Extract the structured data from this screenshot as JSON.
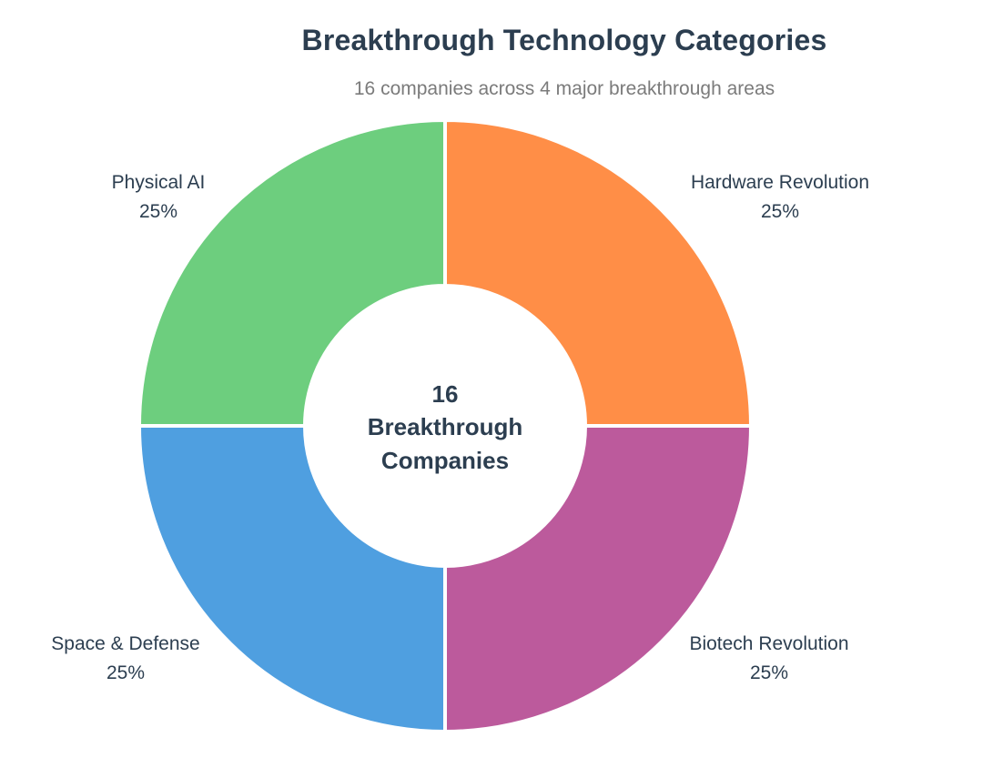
{
  "chart_data": {
    "type": "pie",
    "title": "Breakthrough Technology Categories",
    "subtitle": "16 companies across 4 major breakthrough areas",
    "donut": true,
    "center_text": [
      "16",
      "Breakthrough",
      "Companies"
    ],
    "slices": [
      {
        "label": "Hardware Revolution",
        "value": 25,
        "percent_label": "25%",
        "color": "#ff8e47"
      },
      {
        "label": "Biotech Revolution",
        "value": 25,
        "percent_label": "25%",
        "color": "#bc5a9c"
      },
      {
        "label": "Space & Defense",
        "value": 25,
        "percent_label": "25%",
        "color": "#4f9fe0"
      },
      {
        "label": "Physical AI",
        "value": 25,
        "percent_label": "25%",
        "color": "#6dce7e"
      }
    ]
  }
}
